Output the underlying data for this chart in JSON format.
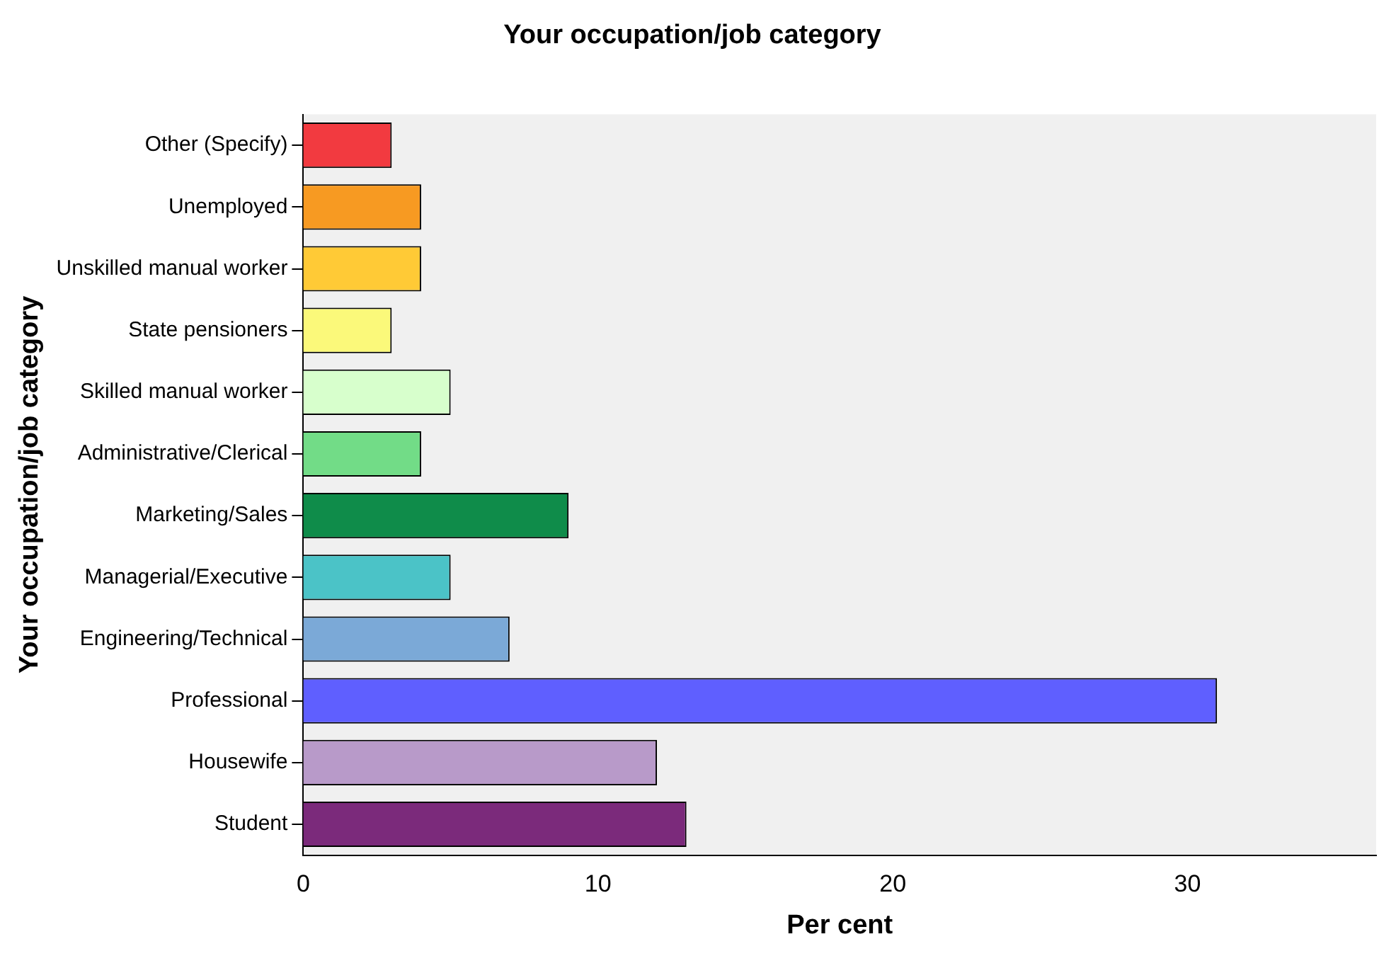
{
  "chart_data": {
    "type": "bar",
    "orientation": "horizontal",
    "title": "Your occupation/job category",
    "xlabel": "Per cent",
    "ylabel": "Your occupation/job category",
    "categories": [
      "Other (Specify)",
      "Unemployed",
      "Unskilled manual worker",
      "State pensioners",
      "Skilled manual worker",
      "Administrative/Clerical",
      "Marketing/Sales",
      "Managerial/Executive",
      "Engineering/Technical",
      "Professional",
      "Housewife",
      "Student"
    ],
    "values": [
      3,
      4,
      4,
      3,
      5,
      4,
      9,
      5,
      7,
      31,
      12,
      13
    ],
    "colors": [
      "#f23a40",
      "#f79a22",
      "#ffca36",
      "#fbf97a",
      "#d7ffcc",
      "#72dc87",
      "#0f8c4a",
      "#4bc3c7",
      "#7ba9d7",
      "#5f5fff",
      "#b89ac9",
      "#7b2a7b"
    ],
    "xlim": [
      0,
      36.4
    ],
    "xticks": [
      0,
      10,
      20,
      30
    ],
    "grid": false,
    "legend": false
  }
}
